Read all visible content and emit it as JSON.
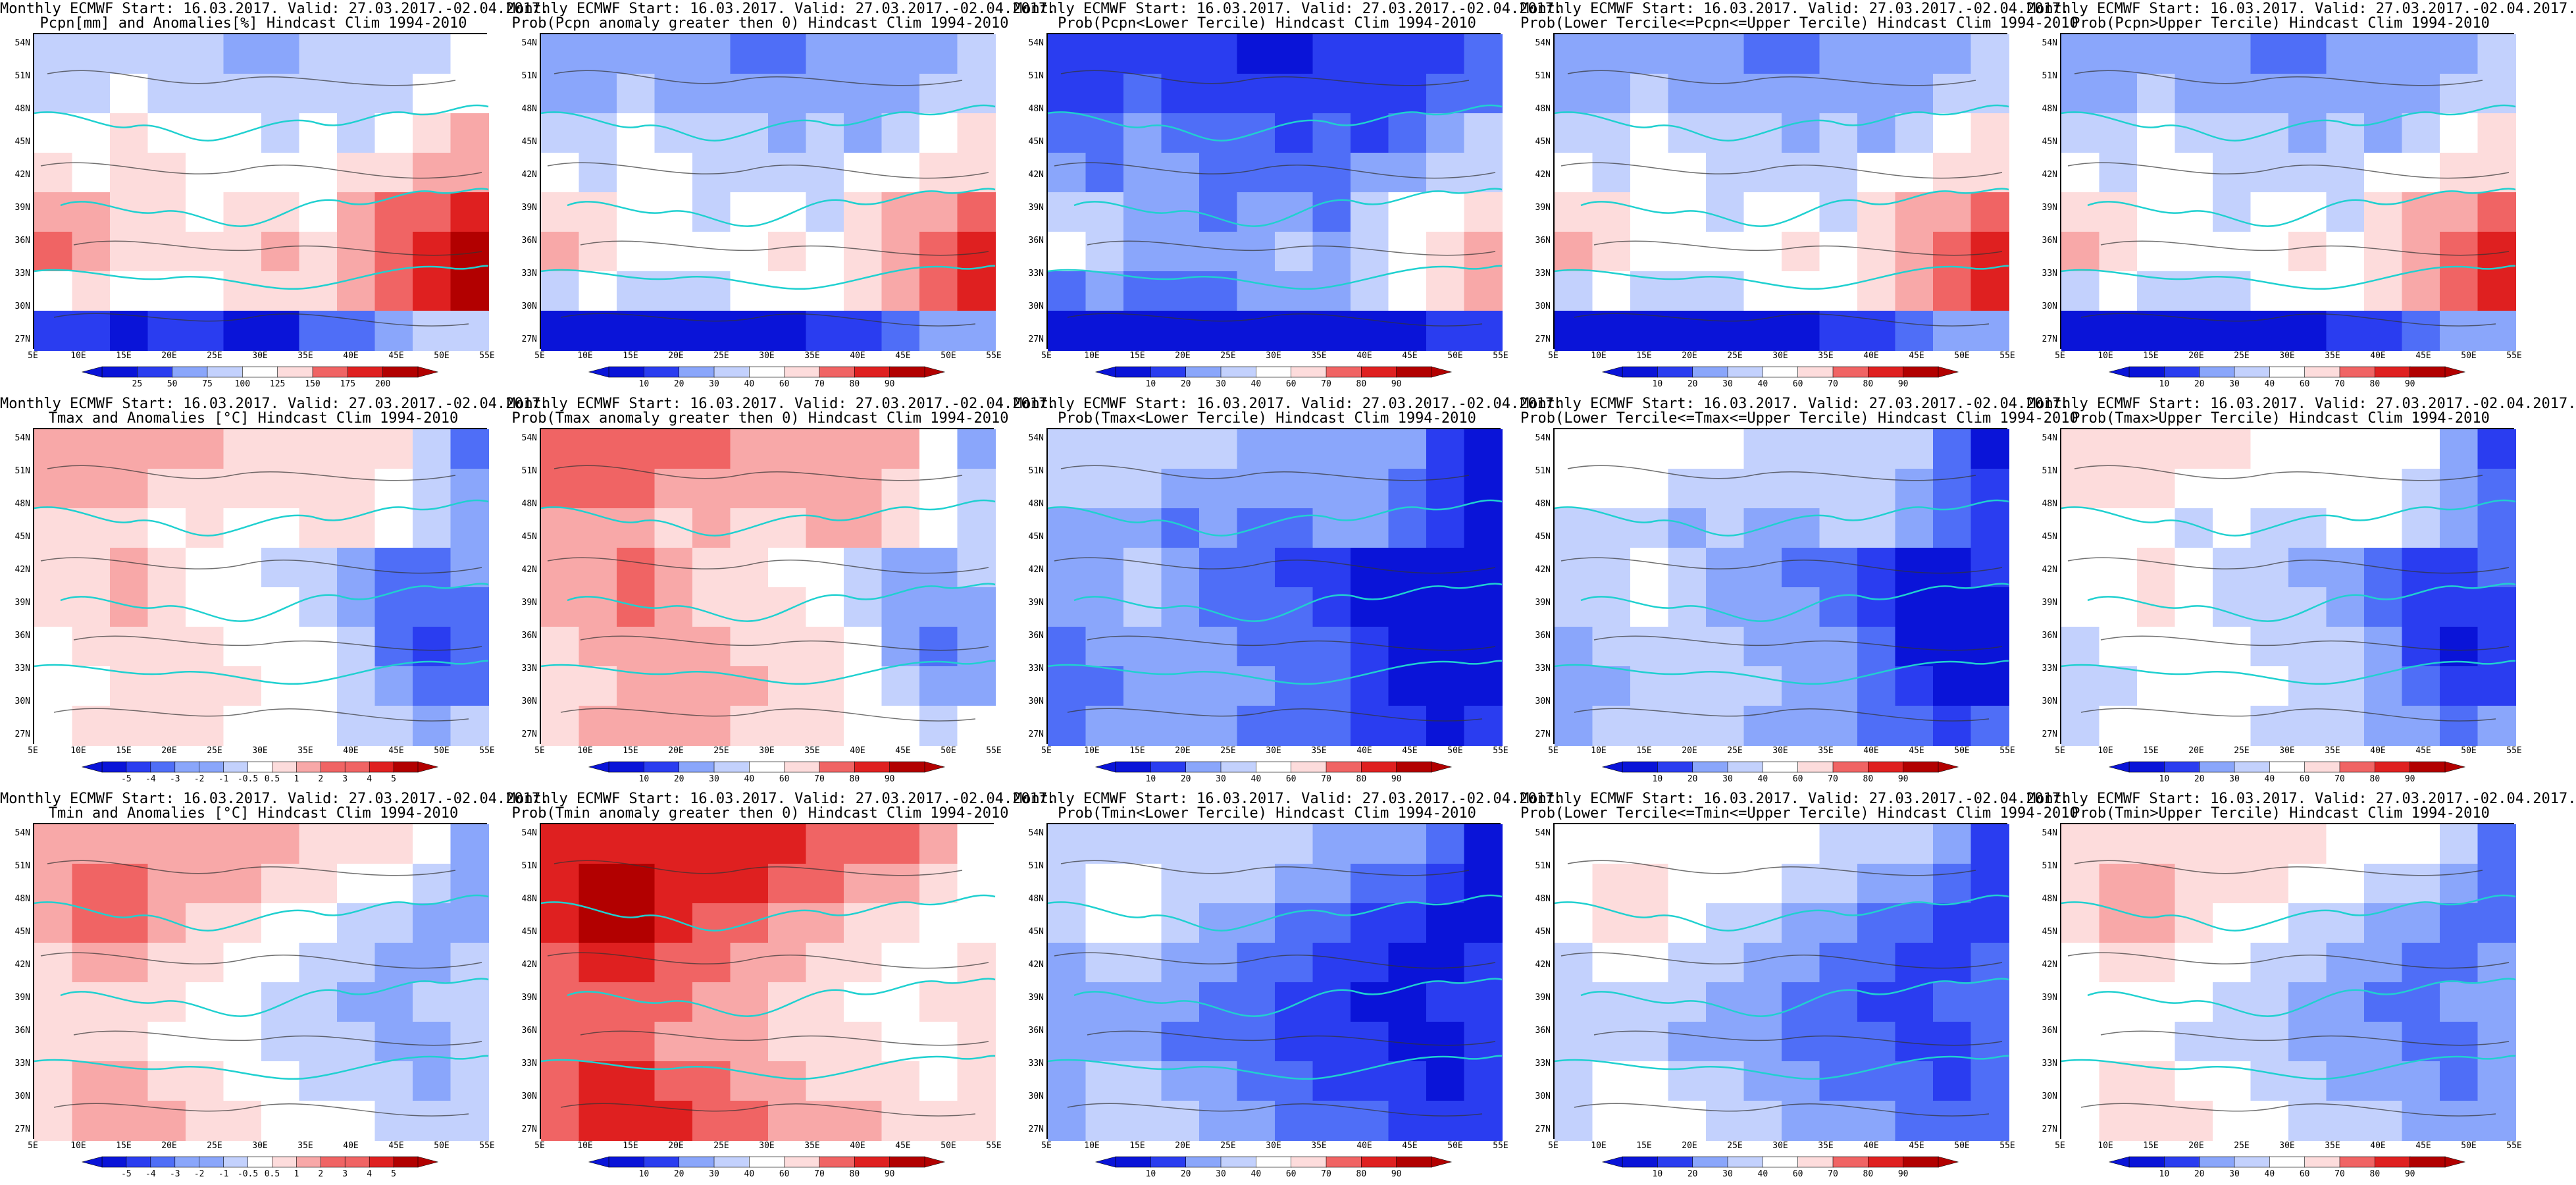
{
  "lat_labels": [
    "54N",
    "51N",
    "48N",
    "45N",
    "42N",
    "39N",
    "36N",
    "33N",
    "30N",
    "27N"
  ],
  "lon_labels": [
    "5E",
    "10E",
    "15E",
    "20E",
    "25E",
    "30E",
    "35E",
    "40E",
    "45E",
    "50E",
    "55E"
  ],
  "colors": {
    "div11": [
      "#0a14d8",
      "#2a3df0",
      "#4f6ef7",
      "#8aa6fb",
      "#c3d1fd",
      "#ffffff",
      "#fddcdc",
      "#f8a8a8",
      "#f06464",
      "#df2020",
      "#b20000"
    ],
    "prob10": [
      "#0a14d8",
      "#2a3df0",
      "#6f8cf8",
      "#b6c6fc",
      "#ffffff",
      "#ffffff",
      "#fbc8c8",
      "#f27c7c",
      "#e02a2a",
      "#b20000"
    ],
    "coast": "#20d0d0",
    "contour": "#333333"
  },
  "rows": [
    {
      "palette": "div11",
      "pattern": [
        [
          -1,
          -1,
          -1,
          -1,
          -1,
          -2,
          -2,
          -1,
          -1,
          -1,
          -1,
          0
        ],
        [
          -1,
          -1,
          0,
          -1,
          -1,
          -1,
          -1,
          -1,
          -1,
          -1,
          0,
          0
        ],
        [
          0,
          0,
          1,
          0,
          0,
          0,
          -1,
          0,
          -1,
          0,
          1,
          2
        ],
        [
          1,
          0,
          1,
          1,
          0,
          0,
          0,
          0,
          1,
          1,
          2,
          2
        ],
        [
          2,
          2,
          1,
          1,
          0,
          1,
          1,
          0,
          2,
          3,
          3,
          4
        ],
        [
          3,
          2,
          1,
          1,
          1,
          1,
          2,
          1,
          2,
          3,
          4,
          5
        ],
        [
          0,
          1,
          0,
          0,
          0,
          1,
          1,
          1,
          2,
          3,
          4,
          5
        ],
        [
          -4,
          -4,
          -5,
          -4,
          -4,
          -5,
          -5,
          -3,
          -3,
          -2,
          -1,
          -1
        ]
      ],
      "panels": [
        {
          "t1": "Monthly ECMWF Start: 16.03.2017. Valid: 27.03.2017.-02.04.2017.",
          "t2": "Pcpn[mm] and Anomalies[%] Hindcast Clim 1994-2010",
          "labels": [
            "25",
            "50",
            "75",
            "100",
            "125",
            "150",
            "175",
            "200"
          ],
          "shift": 0
        },
        {
          "t1": "Monthly ECMWF Start: 16.03.2017. Valid: 27.03.2017.-02.04.2017.",
          "t2": "Prob(Pcpn anomaly greater then 0) Hindcast Clim 1994-2010",
          "labels": [
            "10",
            "20",
            "30",
            "40",
            "60",
            "70",
            "80",
            "90"
          ],
          "shift": -1
        },
        {
          "t1": "Monthly ECMWF Start: 16.03.2017. Valid: 27.03.2017.-02.04.2017.",
          "t2": "Prob(Pcpn<Lower Tercile) Hindcast Clim 1994-2010",
          "labels": [
            "10",
            "20",
            "30",
            "40",
            "60",
            "70",
            "80",
            "90"
          ],
          "shift": -3
        },
        {
          "t1": "Monthly ECMWF Start: 16.03.2017. Valid: 27.03.2017.-02.04.2017.",
          "t2": "Prob(Lower Tercile<=Pcpn<=Upper Tercile) Hindcast Clim 1994-2010",
          "labels": [
            "10",
            "20",
            "30",
            "40",
            "60",
            "70",
            "80",
            "90"
          ],
          "shift": -1
        },
        {
          "t1": "Monthly ECMWF Start: 16.03.2017. Valid: 27.03.2017.-02.04.2017.",
          "t2": "Prob(Pcpn>Upper Tercile) Hindcast Clim 1994-2010",
          "labels": [
            "10",
            "20",
            "30",
            "40",
            "60",
            "70",
            "80",
            "90"
          ],
          "shift": -1
        }
      ]
    },
    {
      "palette": "div11",
      "pattern": [
        [
          2,
          2,
          2,
          2,
          2,
          1,
          1,
          1,
          1,
          1,
          -1,
          -3
        ],
        [
          2,
          2,
          2,
          1,
          1,
          1,
          1,
          1,
          1,
          0,
          -1,
          -2
        ],
        [
          1,
          1,
          1,
          0,
          1,
          0,
          0,
          1,
          1,
          0,
          -1,
          -2
        ],
        [
          1,
          1,
          2,
          1,
          0,
          0,
          -1,
          -1,
          -2,
          -3,
          -3,
          -2
        ],
        [
          1,
          1,
          2,
          1,
          0,
          0,
          0,
          -1,
          -2,
          -3,
          -3,
          -3
        ],
        [
          0,
          1,
          1,
          1,
          1,
          0,
          0,
          0,
          -1,
          -3,
          -4,
          -3
        ],
        [
          0,
          0,
          1,
          1,
          1,
          1,
          0,
          0,
          -1,
          -2,
          -3,
          -3
        ],
        [
          0,
          1,
          1,
          1,
          1,
          0,
          0,
          0,
          -1,
          -1,
          -2,
          -1
        ]
      ],
      "panels": [
        {
          "t1": "Monthly ECMWF Start: 16.03.2017. Valid: 27.03.2017.-02.04.2017.",
          "t2": "Tmax and Anomalies [°C] Hindcast Clim 1994-2010",
          "labels": [
            "-5",
            "-4",
            "-3",
            "-2",
            "-1",
            "-0.5",
            "0.5",
            "1",
            "2",
            "3",
            "4",
            "5"
          ],
          "shift": 0
        },
        {
          "t1": "Monthly ECMWF Start: 16.03.2017. Valid: 27.03.2017.-02.04.2017.",
          "t2": "Prob(Tmax anomaly greater then 0) Hindcast Clim 1994-2010",
          "labels": [
            "10",
            "20",
            "30",
            "40",
            "60",
            "70",
            "80",
            "90"
          ],
          "shift": 1
        },
        {
          "t1": "Monthly ECMWF Start: 16.03.2017. Valid: 27.03.2017.-02.04.2017.",
          "t2": "Prob(Tmax<Lower Tercile) Hindcast Clim 1994-2010",
          "labels": [
            "10",
            "20",
            "30",
            "40",
            "60",
            "70",
            "80",
            "90"
          ],
          "shift": -3
        },
        {
          "t1": "Monthly ECMWF Start: 16.03.2017. Valid: 27.03.2017.-02.04.2017.",
          "t2": "Prob(Lower Tercile<=Tmax<=Upper Tercile) Hindcast Clim 1994-2010",
          "labels": [
            "10",
            "20",
            "30",
            "40",
            "60",
            "70",
            "80",
            "90"
          ],
          "shift": -2
        },
        {
          "t1": "Monthly ECMWF Start: 16.03.2017. Valid: 27.03.2017.-02.04.2017.",
          "t2": "Prob(Tmax>Upper Tercile) Hindcast Clim 1994-2010",
          "labels": [
            "10",
            "20",
            "30",
            "40",
            "60",
            "70",
            "80",
            "90"
          ],
          "shift": -1
        }
      ]
    },
    {
      "palette": "div11",
      "pattern": [
        [
          2,
          2,
          2,
          2,
          2,
          2,
          2,
          1,
          1,
          1,
          0,
          -2
        ],
        [
          2,
          3,
          3,
          2,
          2,
          2,
          1,
          1,
          0,
          0,
          -1,
          -2
        ],
        [
          2,
          3,
          3,
          2,
          1,
          1,
          0,
          0,
          -1,
          -1,
          -2,
          -2
        ],
        [
          1,
          2,
          2,
          1,
          1,
          0,
          0,
          -1,
          -1,
          -2,
          -2,
          -1
        ],
        [
          1,
          1,
          1,
          1,
          0,
          0,
          -1,
          -1,
          -2,
          -2,
          -1,
          -1
        ],
        [
          1,
          1,
          1,
          0,
          0,
          0,
          -1,
          -1,
          -1,
          -2,
          -2,
          -1
        ],
        [
          1,
          2,
          2,
          1,
          1,
          0,
          0,
          -1,
          -1,
          -1,
          -2,
          -1
        ],
        [
          1,
          2,
          2,
          2,
          1,
          1,
          0,
          0,
          0,
          -1,
          -1,
          -1
        ]
      ],
      "panels": [
        {
          "t1": "Monthly ECMWF Start: 16.03.2017. Valid: 27.03.2017.-02.04.2017.",
          "t2": "Tmin and Anomalies [°C] Hindcast Clim 1994-2010",
          "labels": [
            "-5",
            "-4",
            "-3",
            "-2",
            "-1",
            "-0.5",
            "0.5",
            "1",
            "2",
            "3",
            "4",
            "5"
          ],
          "shift": 0
        },
        {
          "t1": "Monthly ECMWF Start: 16.03.2017. Valid: 27.03.2017.-02.04.2017.",
          "t2": "Prob(Tmin anomaly greater then 0) Hindcast Clim 1994-2010",
          "labels": [
            "10",
            "20",
            "30",
            "40",
            "60",
            "70",
            "80",
            "90"
          ],
          "shift": 2
        },
        {
          "t1": "Monthly ECMWF Start: 16.03.2017. Valid: 27.03.2017.-02.04.2017.",
          "t2": "Prob(Tmin<Lower Tercile) Hindcast Clim 1994-2010",
          "labels": [
            "10",
            "20",
            "30",
            "40",
            "60",
            "70",
            "80",
            "90"
          ],
          "shift": -3
        },
        {
          "t1": "Monthly ECMWF Start: 16.03.2017. Valid: 27.03.2017.-02.04.2017.",
          "t2": "Prob(Lower Tercile<=Tmin<=Upper Tercile) Hindcast Clim 1994-2010",
          "labels": [
            "10",
            "20",
            "30",
            "40",
            "60",
            "70",
            "80",
            "90"
          ],
          "shift": -2
        },
        {
          "t1": "Monthly ECMWF Start: 16.03.2017. Valid: 27.03.2017.-02.04.2017.",
          "t2": "Prob(Tmin>Upper Tercile) Hindcast Clim 1994-2010",
          "labels": [
            "10",
            "20",
            "30",
            "40",
            "60",
            "70",
            "80",
            "90"
          ],
          "shift": -1
        }
      ]
    }
  ]
}
